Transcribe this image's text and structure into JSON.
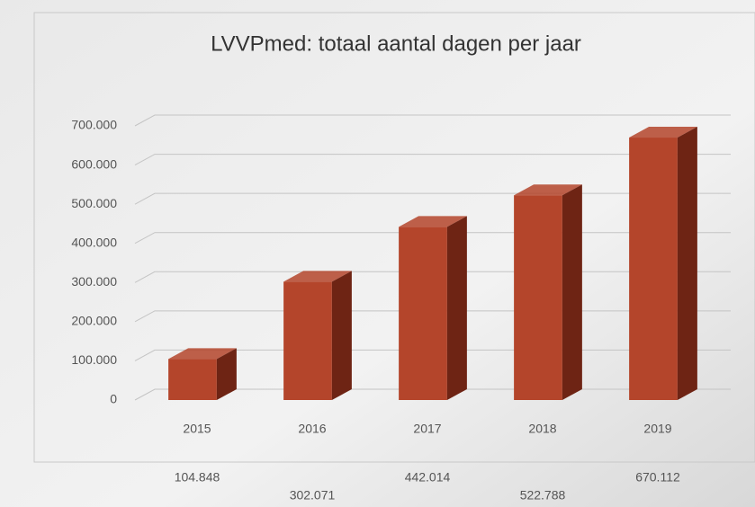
{
  "chart_data": {
    "type": "bar3d",
    "title": "LVVPmed: totaal aantal dagen per jaar",
    "categories": [
      "2015",
      "2016",
      "2017",
      "2018",
      "2019"
    ],
    "values": [
      104848,
      302071,
      442014,
      522788,
      670112
    ],
    "value_labels": [
      "104.848",
      "302.071",
      "442.014",
      "522.788",
      "670.112"
    ],
    "color": "#b4452b",
    "ylim": [
      0,
      700000
    ],
    "yticks": [
      0,
      {
        "value": 100000,
        "label": "100.000"
      },
      {
        "value": 200000,
        "label": "200.000"
      },
      {
        "value": 300000,
        "label": "300.000"
      },
      {
        "value": 400000,
        "label": "400.000"
      },
      {
        "value": 500000,
        "label": "500.000"
      },
      {
        "value": 600000,
        "label": "600.000"
      },
      {
        "value": 700000,
        "label": "700.000"
      }
    ],
    "grid": true
  }
}
